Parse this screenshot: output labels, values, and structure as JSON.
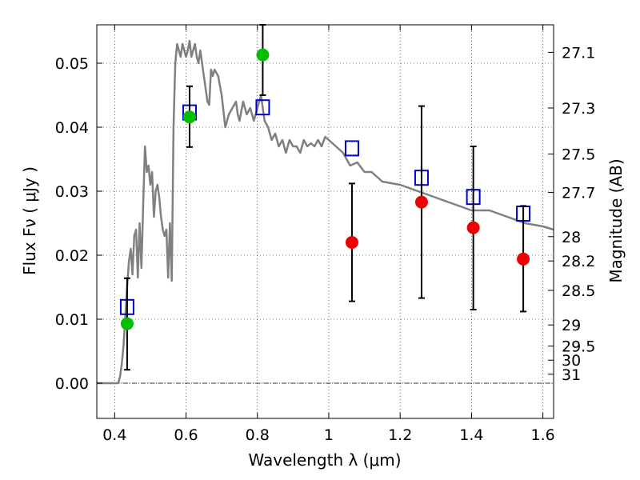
{
  "chart_data": {
    "type": "scatter",
    "title": "",
    "xlabel": "Wavelength  λ (μm)",
    "ylabel": "Flux  Fν ( μJy )",
    "y2label": "Magnitude (AB)",
    "xlim": [
      0.35,
      1.63
    ],
    "ylim": [
      -0.0055,
      0.056
    ],
    "grid": true,
    "x_ticks": [
      0.4,
      0.6,
      0.8,
      1.0,
      1.2,
      1.4,
      1.6
    ],
    "x_tick_labels": [
      "0.4",
      "0.6",
      "0.8",
      "1",
      "1.2",
      "1.4",
      "1.6"
    ],
    "y_ticks": [
      0.0,
      0.01,
      0.02,
      0.03,
      0.04,
      0.05
    ],
    "y_tick_labels": [
      "0.00",
      "0.01",
      "0.02",
      "0.03",
      "0.04",
      "0.05"
    ],
    "y2_ticks": [
      {
        "label": "27.1",
        "flux": 0.0517
      },
      {
        "label": "27.3",
        "flux": 0.043
      },
      {
        "label": "27.5",
        "flux": 0.0358
      },
      {
        "label": "27.7",
        "flux": 0.0298
      },
      {
        "label": "28",
        "flux": 0.0229
      },
      {
        "label": "28.2",
        "flux": 0.0191
      },
      {
        "label": "28.5",
        "flux": 0.0145
      },
      {
        "label": "29",
        "flux": 0.0091
      },
      {
        "label": "29.5",
        "flux": 0.0058
      },
      {
        "label": "30",
        "flux": 0.0036
      },
      {
        "label": "31",
        "flux": 0.0014
      }
    ],
    "series": [
      {
        "marker": "line",
        "color": "#808080",
        "x": [
          0.35,
          0.4,
          0.41,
          0.415,
          0.42,
          0.425,
          0.43,
          0.435,
          0.44,
          0.445,
          0.45,
          0.455,
          0.46,
          0.465,
          0.47,
          0.475,
          0.48,
          0.485,
          0.49,
          0.495,
          0.5,
          0.505,
          0.51,
          0.515,
          0.52,
          0.525,
          0.53,
          0.535,
          0.54,
          0.545,
          0.55,
          0.555,
          0.56,
          0.565,
          0.57,
          0.575,
          0.58,
          0.585,
          0.59,
          0.595,
          0.6,
          0.605,
          0.61,
          0.615,
          0.62,
          0.625,
          0.63,
          0.635,
          0.64,
          0.645,
          0.65,
          0.655,
          0.66,
          0.665,
          0.67,
          0.675,
          0.68,
          0.69,
          0.7,
          0.71,
          0.72,
          0.73,
          0.74,
          0.745,
          0.75,
          0.76,
          0.77,
          0.78,
          0.79,
          0.8,
          0.81,
          0.82,
          0.83,
          0.84,
          0.85,
          0.86,
          0.87,
          0.88,
          0.89,
          0.9,
          0.91,
          0.92,
          0.93,
          0.94,
          0.95,
          0.96,
          0.97,
          0.98,
          0.99,
          1.0,
          1.02,
          1.04,
          1.06,
          1.08,
          1.1,
          1.12,
          1.15,
          1.2,
          1.25,
          1.3,
          1.35,
          1.4,
          1.45,
          1.5,
          1.55,
          1.6,
          1.63
        ],
        "y": [
          0.0,
          0.0,
          0.0,
          0.001,
          0.003,
          0.006,
          0.0105,
          0.015,
          0.019,
          0.021,
          0.017,
          0.023,
          0.024,
          0.0165,
          0.025,
          0.018,
          0.028,
          0.037,
          0.033,
          0.034,
          0.031,
          0.033,
          0.026,
          0.03,
          0.031,
          0.029,
          0.026,
          0.024,
          0.023,
          0.024,
          0.0165,
          0.025,
          0.016,
          0.04,
          0.05,
          0.053,
          0.052,
          0.051,
          0.053,
          0.052,
          0.051,
          0.052,
          0.0535,
          0.051,
          0.052,
          0.053,
          0.051,
          0.05,
          0.052,
          0.05,
          0.048,
          0.046,
          0.044,
          0.0435,
          0.049,
          0.048,
          0.049,
          0.048,
          0.045,
          0.04,
          0.042,
          0.043,
          0.044,
          0.042,
          0.041,
          0.044,
          0.042,
          0.043,
          0.041,
          0.043,
          0.045,
          0.041,
          0.04,
          0.038,
          0.039,
          0.037,
          0.038,
          0.036,
          0.038,
          0.037,
          0.037,
          0.036,
          0.038,
          0.037,
          0.0375,
          0.037,
          0.038,
          0.037,
          0.0385,
          0.038,
          0.037,
          0.036,
          0.034,
          0.0345,
          0.033,
          0.033,
          0.0315,
          0.031,
          0.03,
          0.029,
          0.028,
          0.027,
          0.027,
          0.026,
          0.025,
          0.0245,
          0.024
        ]
      },
      {
        "marker": "open-square",
        "color": "#0000cc",
        "x": [
          0.435,
          0.61,
          0.815,
          1.065,
          1.26,
          1.405,
          1.545
        ],
        "y": [
          0.0119,
          0.0423,
          0.0431,
          0.0367,
          0.0321,
          0.0291,
          0.0265
        ]
      },
      {
        "marker": "circle",
        "color": "#00c000",
        "x": [
          0.435,
          0.61,
          0.815
        ],
        "y": [
          0.0093,
          0.0416,
          0.0513
        ],
        "err_low": [
          0.0072,
          0.0047,
          0.0063
        ],
        "err_high": [
          0.0071,
          0.0048,
          0.0047
        ]
      },
      {
        "marker": "circle",
        "color": "#ee0000",
        "x": [
          1.065,
          1.26,
          1.405,
          1.545
        ],
        "y": [
          0.022,
          0.0283,
          0.0243,
          0.0194
        ],
        "err_low": [
          0.0092,
          0.015,
          0.0128,
          0.0082
        ],
        "err_high": [
          0.0092,
          0.015,
          0.0127,
          0.0083
        ]
      }
    ]
  }
}
